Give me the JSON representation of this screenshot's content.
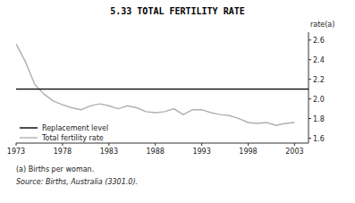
{
  "chart_data": {
    "type": "line",
    "title": "5.33   TOTAL FERTILITY RATE",
    "ylabel": "rate(a)",
    "annotations": [
      "(a) Births per woman.",
      "Source:  Births, Australia (3301.0)."
    ],
    "x": [
      1973,
      1974,
      1975,
      1976,
      1977,
      1978,
      1979,
      1980,
      1981,
      1982,
      1983,
      1984,
      1985,
      1986,
      1987,
      1988,
      1989,
      1990,
      1991,
      1992,
      1993,
      1994,
      1995,
      1996,
      1997,
      1998,
      1999,
      2000,
      2001,
      2002,
      2003
    ],
    "series": [
      {
        "name": "Replacement level",
        "type": "hline",
        "color": "#000000",
        "value": 2.1
      },
      {
        "name": "Total fertility rate",
        "type": "line",
        "color": "#b0b0b0",
        "values": [
          2.56,
          2.38,
          2.15,
          2.05,
          1.98,
          1.94,
          1.91,
          1.89,
          1.93,
          1.95,
          1.93,
          1.9,
          1.93,
          1.91,
          1.87,
          1.86,
          1.87,
          1.9,
          1.84,
          1.89,
          1.89,
          1.86,
          1.84,
          1.83,
          1.8,
          1.76,
          1.75,
          1.76,
          1.73,
          1.75,
          1.76
        ]
      }
    ],
    "xlim": [
      1973,
      2004.5
    ],
    "xticks": [
      1973,
      1978,
      1983,
      1988,
      1993,
      1998,
      2003
    ],
    "ylim": [
      1.55,
      2.68
    ],
    "yticks": [
      1.6,
      1.8,
      {
        "value": 2,
        "label": "2.0"
      },
      2.2,
      2.4,
      2.6
    ],
    "grid": false,
    "legend": "lower left"
  }
}
